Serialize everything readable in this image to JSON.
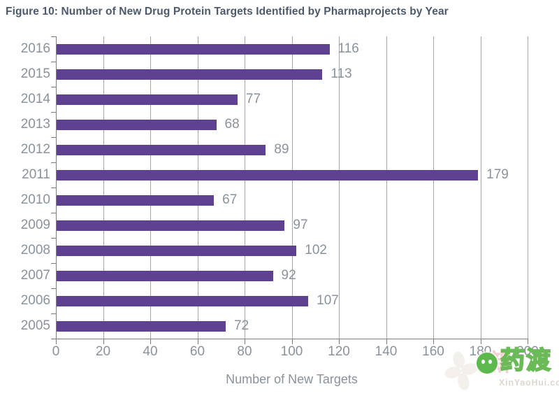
{
  "title": "Figure 10: Number of New Drug Protein Targets Identified by Pharmaprojects by Year",
  "chart_data": {
    "type": "bar",
    "orientation": "horizontal",
    "title": "Figure 10: Number of New Drug Protein Targets Identified by Pharmaprojects by Year",
    "categories": [
      "2016",
      "2015",
      "2014",
      "2013",
      "2012",
      "2011",
      "2010",
      "2009",
      "2008",
      "2007",
      "2006",
      "2005"
    ],
    "values": [
      116,
      113,
      77,
      68,
      89,
      179,
      67,
      97,
      102,
      92,
      107,
      72
    ],
    "xlabel": "Number of New Targets",
    "ylabel": "",
    "xlim": [
      0,
      200
    ],
    "xticks": [
      0,
      20,
      40,
      60,
      80,
      100,
      120,
      140,
      160,
      180,
      200
    ],
    "grid": true,
    "legend": false,
    "bar_color": "#5E4191",
    "label_color": "#8A929C",
    "title_color": "#4D5A6B",
    "grid_color": "#A6A6A6",
    "axis_color": "#7D7D7D"
  },
  "watermark": {
    "brand_text": "药渡",
    "overlay_text": "新",
    "domain_text": "XinYaoHui.com",
    "icon": "wechat-chat-icon",
    "green": "#6ABA57",
    "pink": "#E28A8A"
  }
}
